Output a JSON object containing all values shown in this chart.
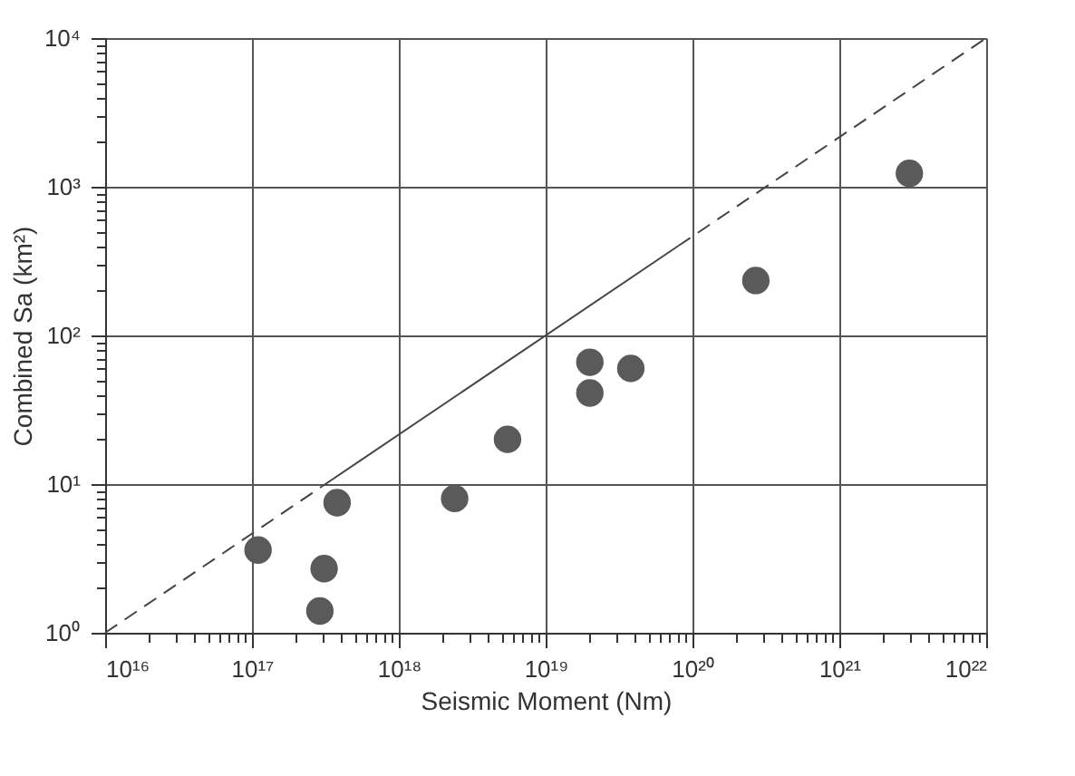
{
  "chart_data": {
    "type": "scatter",
    "xlabel": "Seismic Moment (Nm)",
    "ylabel": "Combined Sa (km²)",
    "log": "xy",
    "grid": true,
    "marker": "circle",
    "xlim": [
      1e+16,
      1e+22
    ],
    "ylim": [
      1,
      10000
    ],
    "xticks": [
      {
        "value": 1e+16,
        "label": "10¹⁶"
      },
      {
        "value": 2e+16,
        "label": null
      },
      {
        "value": 3e+16,
        "label": null
      },
      {
        "value": 4e+16,
        "label": null
      },
      {
        "value": 5e+16,
        "label": null
      },
      {
        "value": 6e+16,
        "label": null
      },
      {
        "value": 7e+16,
        "label": null
      },
      {
        "value": 8e+16,
        "label": null
      },
      {
        "value": 9e+16,
        "label": null
      },
      {
        "value": 1e+17,
        "label": "10¹⁷"
      },
      {
        "value": 2e+17,
        "label": null
      },
      {
        "value": 3e+17,
        "label": null
      },
      {
        "value": 4e+17,
        "label": null
      },
      {
        "value": 5e+17,
        "label": null
      },
      {
        "value": 6e+17,
        "label": null
      },
      {
        "value": 7e+17,
        "label": null
      },
      {
        "value": 8e+17,
        "label": null
      },
      {
        "value": 9e+17,
        "label": null
      },
      {
        "value": 1e+18,
        "label": "10¹⁸"
      },
      {
        "value": 2e+18,
        "label": null
      },
      {
        "value": 3e+18,
        "label": null
      },
      {
        "value": 4e+18,
        "label": null
      },
      {
        "value": 5e+18,
        "label": null
      },
      {
        "value": 6e+18,
        "label": null
      },
      {
        "value": 7e+18,
        "label": null
      },
      {
        "value": 8e+18,
        "label": null
      },
      {
        "value": 9e+18,
        "label": null
      },
      {
        "value": 1e+19,
        "label": "10¹⁹"
      },
      {
        "value": 2e+19,
        "label": null
      },
      {
        "value": 3e+19,
        "label": null
      },
      {
        "value": 4e+19,
        "label": null
      },
      {
        "value": 5e+19,
        "label": null
      },
      {
        "value": 6e+19,
        "label": null
      },
      {
        "value": 7e+19,
        "label": null
      },
      {
        "value": 8e+19,
        "label": null
      },
      {
        "value": 9e+19,
        "label": null
      },
      {
        "value": 1e+20,
        "label": "10²⁰"
      },
      {
        "value": 2e+20,
        "label": null
      },
      {
        "value": 3e+20,
        "label": null
      },
      {
        "value": 4e+20,
        "label": null
      },
      {
        "value": 5e+20,
        "label": null
      },
      {
        "value": 6e+20,
        "label": null
      },
      {
        "value": 7e+20,
        "label": null
      },
      {
        "value": 8e+20,
        "label": null
      },
      {
        "value": 9e+20,
        "label": null
      },
      {
        "value": 1e+21,
        "label": "10²¹"
      },
      {
        "value": 2e+21,
        "label": null
      },
      {
        "value": 3e+21,
        "label": null
      },
      {
        "value": 4e+21,
        "label": null
      },
      {
        "value": 5e+21,
        "label": null
      },
      {
        "value": 6e+21,
        "label": null
      },
      {
        "value": 7e+21,
        "label": null
      },
      {
        "value": 8e+21,
        "label": null
      },
      {
        "value": 9e+21,
        "label": null
      },
      {
        "value": 1e+22,
        "label": "10²²"
      }
    ],
    "yticks": [
      {
        "value": 1,
        "label": "10⁰"
      },
      {
        "value": 2,
        "label": null
      },
      {
        "value": 3,
        "label": null
      },
      {
        "value": 4,
        "label": null
      },
      {
        "value": 5,
        "label": null
      },
      {
        "value": 6,
        "label": null
      },
      {
        "value": 7,
        "label": null
      },
      {
        "value": 8,
        "label": null
      },
      {
        "value": 9,
        "label": null
      },
      {
        "value": 10,
        "label": "10¹"
      },
      {
        "value": 20,
        "label": null
      },
      {
        "value": 30,
        "label": null
      },
      {
        "value": 40,
        "label": null
      },
      {
        "value": 50,
        "label": null
      },
      {
        "value": 60,
        "label": null
      },
      {
        "value": 70,
        "label": null
      },
      {
        "value": 80,
        "label": null
      },
      {
        "value": 90,
        "label": null
      },
      {
        "value": 100,
        "label": "10²"
      },
      {
        "value": 200,
        "label": null
      },
      {
        "value": 300,
        "label": null
      },
      {
        "value": 400,
        "label": null
      },
      {
        "value": 500,
        "label": null
      },
      {
        "value": 600,
        "label": null
      },
      {
        "value": 700,
        "label": null
      },
      {
        "value": 800,
        "label": null
      },
      {
        "value": 900,
        "label": null
      },
      {
        "value": 1000,
        "label": "10³"
      },
      {
        "value": 2000,
        "label": null
      },
      {
        "value": 3000,
        "label": null
      },
      {
        "value": 4000,
        "label": null
      },
      {
        "value": 5000,
        "label": null
      },
      {
        "value": 6000,
        "label": null
      },
      {
        "value": 7000,
        "label": null
      },
      {
        "value": 8000,
        "label": null
      },
      {
        "value": 9000,
        "label": null
      },
      {
        "value": 10000,
        "label": "10⁴"
      }
    ],
    "series": [
      {
        "color": "#5a5a5a",
        "x": [
          1.1e+17,
          3.1e+17,
          2.9e+17,
          3.8e+17,
          2.4e+18,
          5.5e+18,
          2e+19,
          2e+19,
          3.8e+19,
          2.7e+20,
          3e+21
        ],
        "values": [
          3.6,
          2.7,
          1.4,
          7.5,
          8,
          20,
          66,
          41,
          60,
          234,
          1230
        ]
      },
      {
        "type": "line",
        "line_style": "dashed",
        "marker": "none",
        "color": "#444444",
        "x": [
          1e+16,
          3e+17
        ],
        "values": [
          1,
          9.65
        ]
      },
      {
        "type": "line",
        "line_style": "solid",
        "marker": "none",
        "color": "#444444",
        "x": [
          3e+17,
          8e+19
        ],
        "values": [
          9.65,
          400
        ]
      },
      {
        "type": "line",
        "line_style": "dashed",
        "marker": "none",
        "color": "#444444",
        "x": [
          8e+19,
          1e+22
        ],
        "values": [
          400,
          10000
        ]
      }
    ]
  }
}
